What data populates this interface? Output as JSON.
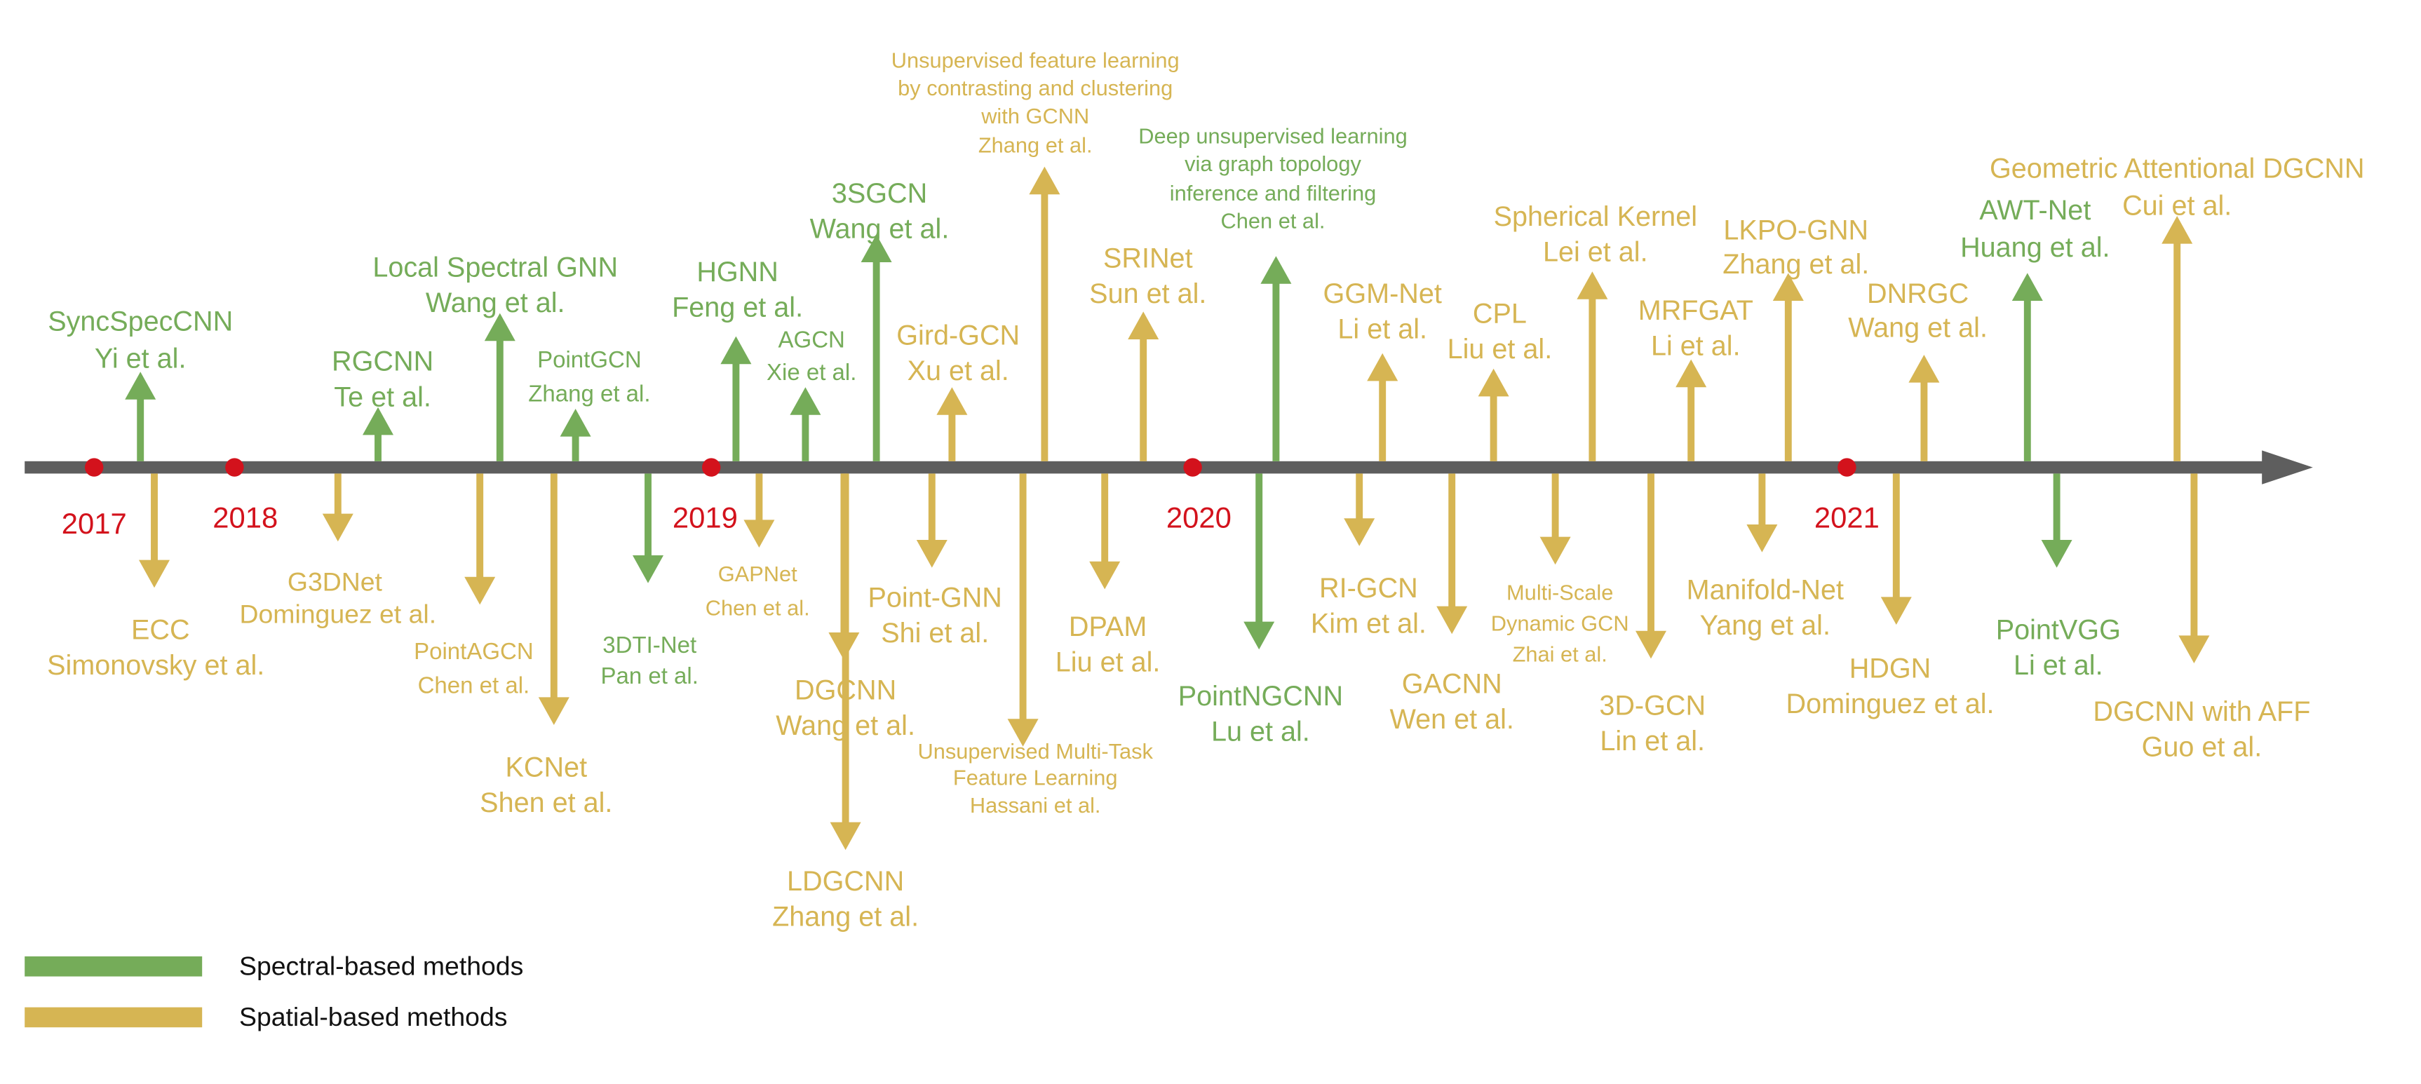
{
  "colors": {
    "spectral": "#75AC59",
    "spatial": "#D6B553",
    "axis": "#5E5E5E",
    "year": "#D3121C"
  },
  "years": [
    "2017",
    "2018",
    "2019",
    "2020",
    "2021"
  ],
  "legend": [
    {
      "type": "spectral",
      "label": "Spectral-based methods"
    },
    {
      "type": "spatial",
      "label": "Spatial-based methods"
    }
  ],
  "methods": [
    {
      "type": "spectral",
      "name": "SyncSpecCNN",
      "authors": "Yi et al."
    },
    {
      "type": "spatial",
      "name": "ECC",
      "authors": "Simonovsky et al."
    },
    {
      "type": "spectral",
      "name": "RGCNN",
      "authors": "Te et al."
    },
    {
      "type": "spatial",
      "name": "G3DNet",
      "authors": "Dominguez et al."
    },
    {
      "type": "spatial",
      "name": "PointAGCN",
      "authors": "Chen et al."
    },
    {
      "type": "spectral",
      "name": "Local Spectral GNN",
      "authors": "Wang et al."
    },
    {
      "type": "spatial",
      "name": "KCNet",
      "authors": "Shen et al."
    },
    {
      "type": "spectral",
      "name": "PointGCN",
      "authors": "Zhang et al."
    },
    {
      "type": "spectral",
      "name": "3DTI-Net",
      "authors": "Pan et al."
    },
    {
      "type": "spectral",
      "name": "HGNN",
      "authors": "Feng et al."
    },
    {
      "type": "spatial",
      "name": "GAPNet",
      "authors": "Chen et al."
    },
    {
      "type": "spectral",
      "name": "AGCN",
      "authors": "Xie et al."
    },
    {
      "type": "spatial",
      "name": "DGCNN",
      "authors": "Wang et al."
    },
    {
      "type": "spatial",
      "name": "LDGCNN",
      "authors": "Zhang et al."
    },
    {
      "type": "spectral",
      "name": "3SGCN",
      "authors": "Wang et al."
    },
    {
      "type": "spatial",
      "name": "Point-GNN",
      "authors": "Shi et al."
    },
    {
      "type": "spatial",
      "name": "Gird-GCN",
      "authors": "Xu et al."
    },
    {
      "type": "spatial",
      "name": "Unsupervised Multi-Task Feature Learning",
      "authors": "Hassani et al."
    },
    {
      "type": "spatial",
      "name": "Unsupervised feature learning by contrasting and clustering with GCNN",
      "authors": "Zhang et al."
    },
    {
      "type": "spatial",
      "name": "DPAM",
      "authors": "Liu et al."
    },
    {
      "type": "spatial",
      "name": "SRINet",
      "authors": "Sun et al."
    },
    {
      "type": "spectral",
      "name": "PointNGCNN",
      "authors": "Lu et al."
    },
    {
      "type": "spectral",
      "name": "Deep unsupervised learning via graph topology inference and filtering",
      "authors": "Chen et al."
    },
    {
      "type": "spatial",
      "name": "RI-GCN",
      "authors": "Kim et al."
    },
    {
      "type": "spatial",
      "name": "GGM-Net",
      "authors": "Li et al."
    },
    {
      "type": "spatial",
      "name": "GACNN",
      "authors": "Wen et al."
    },
    {
      "type": "spatial",
      "name": "CPL",
      "authors": "Liu et al."
    },
    {
      "type": "spatial",
      "name": "Multi-Scale Dynamic GCN",
      "authors": "Zhai et al."
    },
    {
      "type": "spatial",
      "name": "Spherical Kernel",
      "authors": "Lei et al."
    },
    {
      "type": "spatial",
      "name": "3D-GCN",
      "authors": "Lin et al."
    },
    {
      "type": "spatial",
      "name": "MRFGAT",
      "authors": "Li et al."
    },
    {
      "type": "spatial",
      "name": "Manifold-Net",
      "authors": "Yang et al."
    },
    {
      "type": "spatial",
      "name": "LKPO-GNN",
      "authors": "Zhang et al."
    },
    {
      "type": "spatial",
      "name": "HDGN",
      "authors": "Dominguez et al."
    },
    {
      "type": "spatial",
      "name": "DNRGC",
      "authors": "Wang et al."
    },
    {
      "type": "spectral",
      "name": "AWT-Net",
      "authors": "Huang et al."
    },
    {
      "type": "spectral",
      "name": "PointVGG",
      "authors": "Li et al."
    },
    {
      "type": "spatial",
      "name": "Geometric Attentional DGCNN",
      "authors": "Cui et al."
    },
    {
      "type": "spatial",
      "name": "DGCNN with AFF",
      "authors": "Guo et al."
    }
  ]
}
